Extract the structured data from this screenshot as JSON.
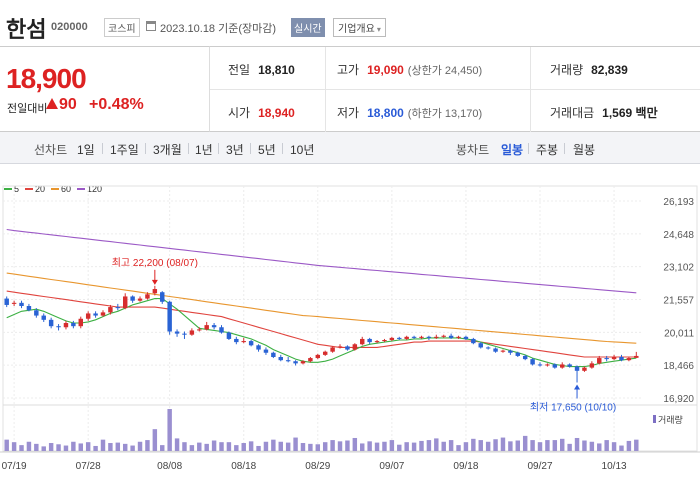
{
  "header": {
    "name": "한섬",
    "code": "020000",
    "market": "코스피",
    "date": "2023.10.18 기준(장마감)",
    "realtime": "실시간",
    "corp_info": "기업개요"
  },
  "price": {
    "current": "18,900",
    "change_label": "전일대비",
    "change": "90",
    "change_pct": "+0.48%"
  },
  "stats": {
    "prev_label": "전일",
    "prev_value": "18,810",
    "high_label": "고가",
    "high_value": "19,090",
    "upper_limit": "(상한가 24,450)",
    "volume_label": "거래량",
    "volume_value": "82,839",
    "open_label": "시가",
    "open_value": "18,940",
    "low_label": "저가",
    "low_value": "18,800",
    "lower_limit": "(하한가 13,170)",
    "amount_label": "거래대금",
    "amount_value": "1,569 백만"
  },
  "toolbar": {
    "line_label": "선차트",
    "line_periods": [
      "1일",
      "1주일",
      "3개월",
      "1년",
      "3년",
      "5년",
      "10년"
    ],
    "candle_label": "봉차트",
    "candle_periods": [
      "일봉",
      "주봉",
      "월봉"
    ],
    "candle_active": "일봉"
  },
  "chart_data": {
    "type": "candlestick",
    "legend": [
      {
        "name": "5",
        "color": "#3cb043"
      },
      {
        "name": "20",
        "color": "#e0443e"
      },
      {
        "name": "60",
        "color": "#e8962e"
      },
      {
        "name": "120",
        "color": "#9b59c6"
      }
    ],
    "y_ticks": [
      "26,193",
      "24,648",
      "23,102",
      "21,557",
      "20,011",
      "18,466",
      "16,920"
    ],
    "ylim": [
      16920,
      26193
    ],
    "x_labels": [
      "07/19",
      "07/28",
      "08/08",
      "08/18",
      "08/29",
      "09/07",
      "09/18",
      "09/27",
      "10/13"
    ],
    "x_label_index": [
      1,
      11,
      22,
      32,
      42,
      52,
      62,
      72,
      82
    ],
    "high_annotation": "최고 22,200 (08/07)",
    "high_index": 20,
    "high_value": 22200,
    "low_annotation": "최저 17,650 (10/10)",
    "low_index": 77,
    "low_value": 17650,
    "volume_label": "거래량",
    "candles": [
      [
        21600,
        21300,
        21700,
        21200
      ],
      [
        21350,
        21400,
        21500,
        21250
      ],
      [
        21400,
        21250,
        21500,
        21150
      ],
      [
        21250,
        21050,
        21350,
        21000
      ],
      [
        21050,
        20800,
        21150,
        20700
      ],
      [
        20800,
        20600,
        20900,
        20500
      ],
      [
        20600,
        20300,
        20700,
        20200
      ],
      [
        20300,
        20250,
        20400,
        20100
      ],
      [
        20250,
        20450,
        20550,
        20150
      ],
      [
        20450,
        20300,
        20550,
        20200
      ],
      [
        20300,
        20650,
        20750,
        20200
      ],
      [
        20650,
        20900,
        21000,
        20550
      ],
      [
        20900,
        20800,
        21000,
        20700
      ],
      [
        20800,
        20950,
        21050,
        20750
      ],
      [
        20950,
        21200,
        21300,
        20850
      ],
      [
        21200,
        21150,
        21350,
        21050
      ],
      [
        21150,
        21700,
        21850,
        21100
      ],
      [
        21700,
        21500,
        21750,
        21400
      ],
      [
        21500,
        21600,
        21700,
        21450
      ],
      [
        21600,
        21800,
        21900,
        21550
      ],
      [
        21850,
        22050,
        22200,
        21750
      ],
      [
        21900,
        21450,
        21950,
        21350
      ],
      [
        21450,
        20050,
        21500,
        19900
      ],
      [
        20050,
        19950,
        20150,
        19800
      ],
      [
        19950,
        19900,
        20050,
        19700
      ],
      [
        19900,
        20100,
        20200,
        19850
      ],
      [
        20100,
        20150,
        20250,
        20050
      ],
      [
        20150,
        20350,
        20500,
        20100
      ],
      [
        20350,
        20250,
        20450,
        20150
      ],
      [
        20250,
        20000,
        20350,
        19950
      ],
      [
        20000,
        19700,
        20050,
        19650
      ],
      [
        19700,
        19550,
        19800,
        19450
      ],
      [
        19550,
        19600,
        19750,
        19500
      ],
      [
        19600,
        19400,
        19650,
        19350
      ],
      [
        19400,
        19200,
        19450,
        19100
      ],
      [
        19200,
        19050,
        19300,
        18950
      ],
      [
        19050,
        18850,
        19100,
        18800
      ],
      [
        18850,
        18700,
        18950,
        18650
      ],
      [
        18700,
        18650,
        18850,
        18600
      ],
      [
        18650,
        18550,
        18700,
        18450
      ],
      [
        18550,
        18650,
        18700,
        18500
      ],
      [
        18650,
        18800,
        18850,
        18600
      ],
      [
        18800,
        18950,
        19000,
        18750
      ],
      [
        18950,
        19100,
        19150,
        18900
      ],
      [
        19100,
        19300,
        19350,
        19050
      ],
      [
        19300,
        19350,
        19450,
        19250
      ],
      [
        19350,
        19200,
        19400,
        19150
      ],
      [
        19200,
        19450,
        19500,
        19150
      ],
      [
        19450,
        19700,
        19800,
        19400
      ],
      [
        19700,
        19550,
        19750,
        19450
      ],
      [
        19550,
        19600,
        19650,
        19500
      ],
      [
        19600,
        19650,
        19700,
        19550
      ],
      [
        19650,
        19750,
        19800,
        19600
      ],
      [
        19750,
        19700,
        19800,
        19650
      ],
      [
        19700,
        19800,
        19850,
        19650
      ],
      [
        19800,
        19750,
        19850,
        19700
      ],
      [
        19750,
        19800,
        19850,
        19700
      ],
      [
        19800,
        19750,
        19850,
        19650
      ],
      [
        19750,
        19800,
        19900,
        19700
      ],
      [
        19800,
        19850,
        19900,
        19750
      ],
      [
        19850,
        19750,
        19950,
        19700
      ],
      [
        19750,
        19800,
        19850,
        19700
      ],
      [
        19800,
        19700,
        19850,
        19650
      ],
      [
        19700,
        19500,
        19750,
        19450
      ],
      [
        19500,
        19300,
        19550,
        19250
      ],
      [
        19300,
        19250,
        19350,
        19200
      ],
      [
        19250,
        19100,
        19300,
        19050
      ],
      [
        19100,
        19150,
        19200,
        19050
      ],
      [
        19150,
        19050,
        19200,
        18950
      ],
      [
        19050,
        18900,
        19100,
        18850
      ],
      [
        18900,
        18750,
        18950,
        18700
      ],
      [
        18750,
        18500,
        18800,
        18450
      ],
      [
        18500,
        18450,
        18600,
        18400
      ],
      [
        18450,
        18500,
        18550,
        18400
      ],
      [
        18500,
        18350,
        18550,
        18300
      ],
      [
        18350,
        18500,
        18600,
        18300
      ],
      [
        18500,
        18400,
        18550,
        18350
      ],
      [
        18400,
        18200,
        18450,
        17650
      ],
      [
        18200,
        18350,
        18400,
        18150
      ],
      [
        18350,
        18550,
        18650,
        18300
      ],
      [
        18550,
        18800,
        18900,
        18500
      ],
      [
        18800,
        18750,
        18900,
        18650
      ],
      [
        18750,
        18850,
        18950,
        18700
      ],
      [
        18850,
        18700,
        18950,
        18650
      ],
      [
        18700,
        18800,
        18850,
        18650
      ],
      [
        18810,
        18900,
        19090,
        18800
      ]
    ],
    "volume": [
      27,
      21,
      14,
      22,
      17,
      11,
      19,
      16,
      13,
      22,
      18,
      21,
      12,
      27,
      19,
      20,
      17,
      13,
      22,
      26,
      52,
      14,
      100,
      30,
      21,
      14,
      20,
      17,
      25,
      21,
      21,
      14,
      19,
      23,
      12,
      22,
      27,
      22,
      20,
      32,
      19,
      17,
      16,
      21,
      26,
      23,
      25,
      31,
      18,
      23,
      20,
      22,
      26,
      15,
      21,
      20,
      24,
      26,
      30,
      22,
      26,
      14,
      21,
      29,
      26,
      22,
      28,
      32,
      23,
      25,
      36,
      26,
      21,
      26,
      26,
      29,
      17,
      31,
      25,
      22,
      18,
      26,
      21,
      13,
      24,
      27
    ],
    "ma5": [
      20700,
      20850,
      21000,
      21050,
      21100,
      21000,
      20850,
      20700,
      20550,
      20450,
      20450,
      20500,
      20600,
      20750,
      20900,
      21000,
      21150,
      21300,
      21400,
      21500,
      21600,
      21600,
      21350,
      21100,
      20800,
      20500,
      20200,
      20150,
      20100,
      20050,
      20000,
      19900,
      19800,
      19700,
      19550,
      19400,
      19200,
      19050,
      18900,
      18750,
      18650,
      18600,
      18600,
      18650,
      18750,
      18900,
      19050,
      19200,
      19350,
      19450,
      19500,
      19550,
      19600,
      19650,
      19650,
      19700,
      19700,
      19750,
      19750,
      19750,
      19750,
      19750,
      19700,
      19650,
      19550,
      19450,
      19350,
      19250,
      19150,
      19050,
      18950,
      18800,
      18700,
      18600,
      18500,
      18450,
      18400,
      18400,
      18400,
      18450,
      18550,
      18600,
      18650,
      18700,
      18750,
      18800
    ],
    "ma20": [
      21950,
      21900,
      21850,
      21800,
      21750,
      21700,
      21650,
      21600,
      21550,
      21500,
      21450,
      21400,
      21350,
      21300,
      21250,
      21200,
      21200,
      21200,
      21200,
      21200,
      21200,
      21150,
      21100,
      21050,
      21000,
      20950,
      20900,
      20850,
      20800,
      20750,
      20650,
      20550,
      20450,
      20350,
      20250,
      20150,
      20050,
      19950,
      19850,
      19750,
      19650,
      19550,
      19450,
      19400,
      19350,
      19300,
      19300,
      19300,
      19300,
      19300,
      19300,
      19350,
      19400,
      19450,
      19500,
      19550,
      19550,
      19600,
      19600,
      19600,
      19600,
      19600,
      19600,
      19600,
      19550,
      19500,
      19450,
      19400,
      19350,
      19300,
      19250,
      19200,
      19150,
      19100,
      19050,
      19000,
      18950,
      18900,
      18850,
      18850,
      18850,
      18850,
      18850,
      18850,
      18850,
      18850
    ],
    "ma60": [
      22800,
      22750,
      22700,
      22650,
      22600,
      22550,
      22500,
      22450,
      22400,
      22350,
      22300,
      22250,
      22200,
      22150,
      22100,
      22050,
      22000,
      21950,
      21900,
      21850,
      21800,
      21750,
      21700,
      21650,
      21600,
      21550,
      21500,
      21450,
      21400,
      21350,
      21300,
      21250,
      21200,
      21150,
      21100,
      21050,
      21000,
      20950,
      20900,
      20850,
      20800,
      20780,
      20750,
      20720,
      20690,
      20660,
      20630,
      20600,
      20570,
      20540,
      20510,
      20480,
      20450,
      20420,
      20390,
      20360,
      20330,
      20300,
      20270,
      20240,
      20210,
      20180,
      20150,
      20120,
      20090,
      20060,
      20030,
      20000,
      19970,
      19940,
      19910,
      19880,
      19850,
      19820,
      19790,
      19760,
      19730,
      19700,
      19670,
      19640,
      19610,
      19580,
      19560,
      19540,
      19520,
      19500
    ],
    "ma120": [
      24850,
      24800,
      24760,
      24720,
      24680,
      24640,
      24600,
      24560,
      24520,
      24480,
      24440,
      24400,
      24360,
      24320,
      24280,
      24240,
      24200,
      24160,
      24120,
      24080,
      24040,
      24000,
      23960,
      23920,
      23880,
      23840,
      23800,
      23760,
      23720,
      23680,
      23640,
      23600,
      23560,
      23520,
      23480,
      23440,
      23400,
      23360,
      23320,
      23280,
      23240,
      23200,
      23160,
      23130,
      23100,
      23070,
      23040,
      23010,
      22980,
      22950,
      22920,
      22890,
      22860,
      22830,
      22800,
      22770,
      22740,
      22710,
      22680,
      22650,
      22620,
      22590,
      22560,
      22530,
      22500,
      22470,
      22440,
      22410,
      22380,
      22350,
      22320,
      22290,
      22260,
      22230,
      22200,
      22170,
      22140,
      22110,
      22080,
      22050,
      22020,
      21990,
      21960,
      21930,
      21900,
      21870
    ]
  }
}
